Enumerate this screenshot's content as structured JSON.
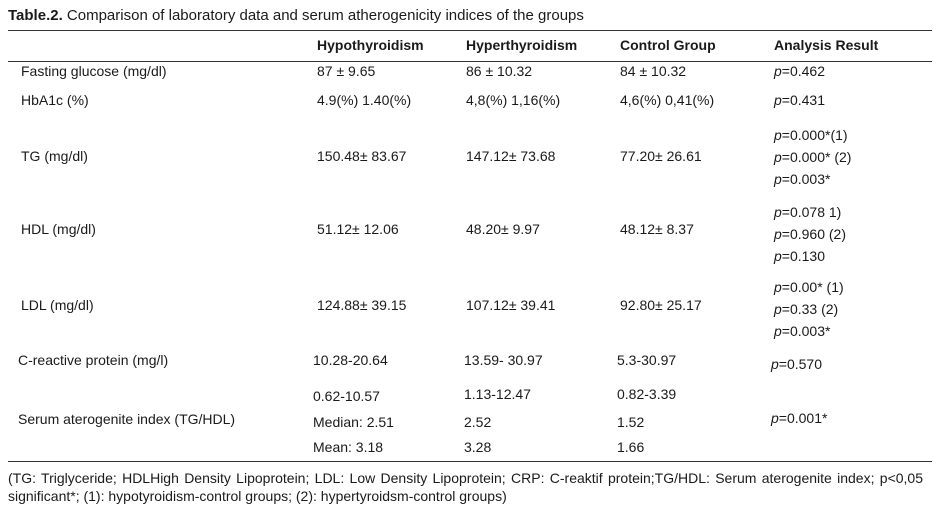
{
  "title": {
    "label": "Table.2.",
    "text": "Comparison of laboratory data and serum atherogenicity indices of the groups"
  },
  "headers": [
    "Hypothyroidism",
    "Hyperthyroidism",
    "Control Group",
    "Analysis Result"
  ],
  "rows": [
    {
      "label": "Fasting glucose (mg/dl)",
      "hypo": "87 ± 9.65",
      "hyper": "86 ± 10.32",
      "control": "84 ± 10.32",
      "p": [
        "=0.462"
      ]
    },
    {
      "label": "HbA1c (%)",
      "hypo": "4.9(%) 1.40(%)",
      "hyper": "4,8(%) 1,16(%)",
      "control": "4,6(%) 0,41(%)",
      "p": [
        "=0.431"
      ]
    },
    {
      "label": "TG (mg/dl)",
      "hypo": "150.48± 83.67",
      "hyper": "147.12± 73.68",
      "control": "77.20± 26.61",
      "p": [
        "=0.000*(1)",
        "=0.000* (2)",
        "=0.003*"
      ]
    },
    {
      "label": "HDL (mg/dl)",
      "hypo": "51.12± 12.06",
      "hyper": "48.20± 9.97",
      "control": "48.12± 8.37",
      "p": [
        "=0.078 1)",
        "=0.960 (2)",
        "=0.130"
      ]
    },
    {
      "label": "LDL (mg/dl)",
      "hypo": "124.88± 39.15",
      "hyper": "107.12± 39.41",
      "control": "92.80± 25.17",
      "p": [
        "=0.00* (1)",
        "=0.33 (2)",
        "=0.003*"
      ]
    },
    {
      "label": "C-reactive protein (mg/l)",
      "hypo": "10.28-20.64",
      "hyper": "13.59- 30.97",
      "control": "5.3-30.97",
      "p": [
        "=0.570"
      ]
    },
    {
      "label": "",
      "hypo": "0.62-10.57",
      "hyper": "1.13-12.47",
      "control": "0.82-3.39",
      "p": []
    },
    {
      "label": "Serum aterogenite index (TG/HDL)",
      "hypo": "Median: 2.51",
      "hyper": "2.52",
      "control": "1.52",
      "p": [
        "=0.001*"
      ]
    },
    {
      "label": "",
      "hypo": "Mean: 3.18",
      "hyper": "3.28",
      "control": "1.66",
      "p": []
    }
  ],
  "p_prefix": "p",
  "footer": "(TG: Triglyceride; HDLHigh Density Lipoprotein;  LDL: Low Density Lipoprotein; CRP: C-reaktif protein;TG/HDL: Serum aterogenite index; p<0,05 significant*; (1): hypotyroidism-control groups; (2): hypertyroidsm-control groups)"
}
